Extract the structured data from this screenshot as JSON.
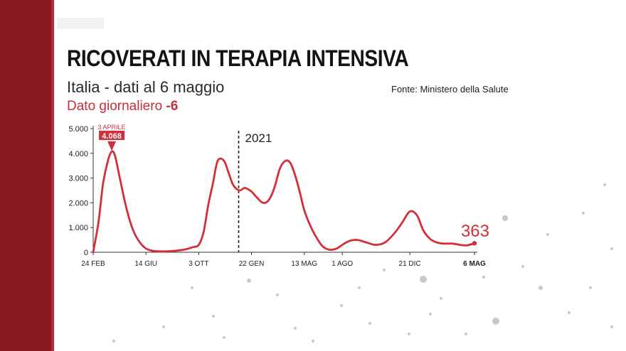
{
  "title": "RICOVERATI IN TERAPIA INTENSIVA",
  "subtitle": "Italia - dati al 6 maggio",
  "source": "Fonte: Ministero della Salute",
  "daily_label": "Dato giornaliero",
  "daily_value": "-6",
  "colors": {
    "line": "#d22f3a",
    "brand_band": "#8a1a22",
    "text": "#141414"
  },
  "chart_data": {
    "type": "line",
    "title": "RICOVERATI IN TERAPIA INTENSIVA",
    "xlabel": "",
    "ylabel": "",
    "ylim": [
      0,
      5000
    ],
    "y_ticks": [
      "5.000",
      "4.000",
      "3.000",
      "2.000",
      "1.000",
      "0"
    ],
    "y_tick_values": [
      5000,
      4000,
      3000,
      2000,
      1000,
      0
    ],
    "x_ticks": [
      {
        "label": "24 FEB",
        "date": "2020-02-24"
      },
      {
        "label": "14 GIU",
        "date": "2020-06-14"
      },
      {
        "label": "3 OTT",
        "date": "2020-10-03"
      },
      {
        "label": "22 GEN",
        "date": "2021-01-22"
      },
      {
        "label": "13 MAG",
        "date": "2021-05-13"
      },
      {
        "label": "1 AGO",
        "date": "2021-08-01"
      },
      {
        "label": "21 DIC",
        "date": "2021-12-21"
      },
      {
        "label": "6 MAG",
        "date": "2022-05-06"
      }
    ],
    "divider": {
      "date": "2021-01-01",
      "label": "2021"
    },
    "peak_annotation": {
      "date": "2020-04-03",
      "label": "3 APRILE",
      "value_label": "4.068",
      "value": 4068
    },
    "last_value_label": "363",
    "grid": false,
    "series": [
      {
        "x": [
          "2020-02-24",
          "2020-03-06",
          "2020-03-16",
          "2020-03-26",
          "2020-04-03",
          "2020-04-10",
          "2020-04-20",
          "2020-04-30",
          "2020-05-10",
          "2020-05-20",
          "2020-06-01",
          "2020-06-14",
          "2020-07-01",
          "2020-08-01",
          "2020-09-01",
          "2020-09-20",
          "2020-10-03",
          "2020-10-13",
          "2020-10-23",
          "2020-11-02",
          "2020-11-12",
          "2020-11-25",
          "2020-12-05",
          "2020-12-15",
          "2020-12-28",
          "2021-01-08",
          "2021-01-22",
          "2021-02-03",
          "2021-02-15",
          "2021-02-27",
          "2021-03-11",
          "2021-03-23",
          "2021-04-04",
          "2021-04-14",
          "2021-04-24",
          "2021-05-04",
          "2021-05-13",
          "2021-05-25",
          "2021-06-06",
          "2021-06-20",
          "2021-07-05",
          "2021-07-20",
          "2021-08-01",
          "2021-08-15",
          "2021-09-01",
          "2021-09-20",
          "2021-10-10",
          "2021-10-30",
          "2021-11-20",
          "2021-12-05",
          "2021-12-21",
          "2022-01-05",
          "2022-01-18",
          "2022-02-01",
          "2022-02-15",
          "2022-03-01",
          "2022-03-20",
          "2022-04-05",
          "2022-04-20",
          "2022-05-06"
        ],
        "y": [
          0,
          1200,
          2800,
          3700,
          4068,
          3900,
          3000,
          2100,
          1350,
          800,
          400,
          150,
          50,
          40,
          100,
          200,
          300,
          800,
          1900,
          2800,
          3700,
          3700,
          3200,
          2700,
          2500,
          2600,
          2450,
          2200,
          2000,
          2100,
          2600,
          3400,
          3700,
          3600,
          3100,
          2400,
          1700,
          1100,
          650,
          250,
          100,
          150,
          300,
          450,
          500,
          400,
          300,
          400,
          800,
          1200,
          1650,
          1500,
          900,
          550,
          400,
          350,
          350,
          300,
          280,
          363
        ]
      }
    ]
  }
}
